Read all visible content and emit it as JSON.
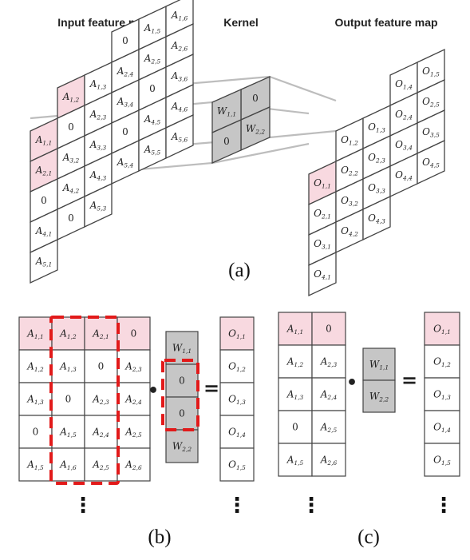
{
  "titles": {
    "input": "Input feature map",
    "kernel": "Kernel",
    "output": "Output feature map"
  },
  "panel_labels": {
    "a": "(a)",
    "b": "(b)",
    "c": "(c)"
  },
  "symbols": {
    "dot": "•",
    "equals": "=",
    "vdots": "⋮"
  },
  "colors": {
    "highlight": "#f8d9e0",
    "kernel": "#c6c6c6",
    "kernel_dark": "#a9a9a9",
    "grid": "#444444",
    "dash": "#e21a1a",
    "connector": "#bdbdbd"
  },
  "panel_a": {
    "input_rows": [
      [
        "",
        "",
        "",
        "0",
        "A_1,5",
        "A_1,6"
      ],
      [
        "",
        "A_1,2",
        "A_1,3",
        "A_2,4",
        "A_2,5",
        "A_2,6"
      ],
      [
        "A_1,1",
        "0",
        "A_2,3",
        "A_3,4",
        "0",
        "A_3,6"
      ],
      [
        "A_2,1",
        "A_3,2",
        "A_3,3",
        "0",
        "A_4,5",
        "A_4,6"
      ],
      [
        "0",
        "A_4,2",
        "A_4,3",
        "A_5,4",
        "A_5,5",
        "A_5,6"
      ],
      [
        "A_4,1",
        "0",
        "A_5,3",
        "",
        "",
        ""
      ],
      [
        "A_5,1",
        "",
        "",
        "",
        "",
        ""
      ]
    ],
    "kernel_rows": [
      [
        "",
        "0"
      ],
      [
        "W_1,1",
        "W_2,2"
      ],
      [
        "0",
        ""
      ]
    ],
    "output_rows": [
      [
        "",
        "",
        "",
        "O_1,4",
        "O_1,5"
      ],
      [
        "",
        "O_1,2",
        "O_1,3",
        "O_2,4",
        "O_2,5"
      ],
      [
        "O_1,1",
        "O_2,2",
        "O_2,3",
        "O_3,4",
        "O_3,5"
      ],
      [
        "O_2,1",
        "O_3,2",
        "O_3,3",
        "O_4,4",
        "O_4,5"
      ],
      [
        "O_3,1",
        "O_4,2",
        "O_4,3",
        "",
        ""
      ],
      [
        "O_4,1",
        "",
        "",
        "",
        ""
      ]
    ]
  },
  "panel_b": {
    "matrix": [
      [
        "A_1,1",
        "A_1,2",
        "A_2,1",
        "0"
      ],
      [
        "A_1,2",
        "A_1,3",
        "0",
        "A_2,3"
      ],
      [
        "A_1,3",
        "0",
        "A_2,3",
        "A_2,4"
      ],
      [
        "0",
        "A_1,5",
        "A_2,4",
        "A_2,5"
      ],
      [
        "A_1,5",
        "A_1,6",
        "A_2,5",
        "A_2,6"
      ]
    ],
    "kernel": [
      "W_1,1",
      "0",
      "0",
      "W_2,2"
    ],
    "output": [
      "O_1,1",
      "O_1,2",
      "O_1,3",
      "O_1,4",
      "O_1,5"
    ]
  },
  "panel_c": {
    "matrix": [
      [
        "A_1,1",
        "0"
      ],
      [
        "A_1,2",
        "A_2,3"
      ],
      [
        "A_1,3",
        "A_2,4"
      ],
      [
        "0",
        "A_2,5"
      ],
      [
        "A_1,5",
        "A_2,6"
      ]
    ],
    "kernel": [
      "W_1,1",
      "W_2,2"
    ],
    "output": [
      "O_1,1",
      "O_1,2",
      "O_1,3",
      "O_1,4",
      "O_1,5"
    ]
  }
}
